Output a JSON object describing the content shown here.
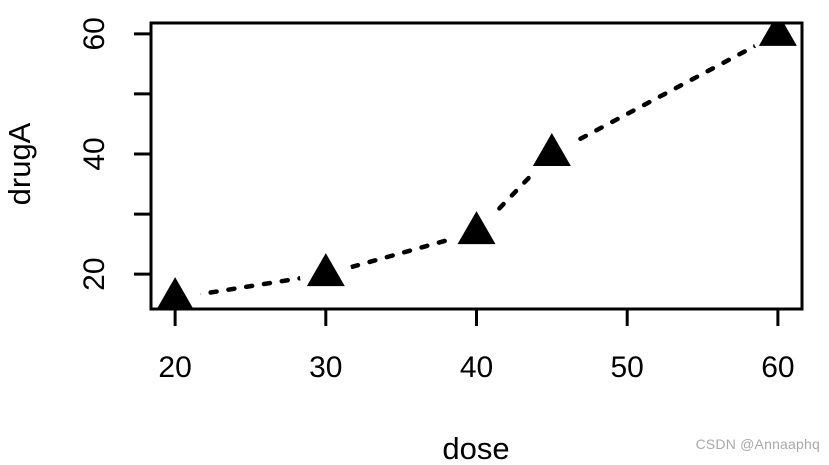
{
  "watermark": {
    "text": "CSDN @Annaaphq",
    "color": "#a9a9a9"
  },
  "chart_data": {
    "type": "line",
    "title": "",
    "xlabel": "dose",
    "ylabel": "drugA",
    "x": [
      20,
      30,
      40,
      45,
      60
    ],
    "y": [
      16,
      20,
      27,
      40,
      60
    ],
    "series": [
      {
        "name": "drugA",
        "x": [
          20,
          30,
          40,
          45,
          60
        ],
        "values": [
          16,
          20,
          27,
          40,
          60
        ]
      }
    ],
    "marker": "filled-triangle",
    "line_style": "dashed",
    "x_ticks": [
      20,
      30,
      40,
      50,
      60
    ],
    "x_tick_labels": [
      "20",
      "30",
      "40",
      "50",
      "60"
    ],
    "y_ticks": [
      20,
      30,
      40,
      50,
      60
    ],
    "y_tick_labels": [
      "20",
      "",
      "40",
      "",
      "60"
    ],
    "xlim": [
      18.4,
      61.6
    ],
    "ylim": [
      14.2,
      61.8
    ],
    "grid": false,
    "legend": false,
    "colors": {
      "line": "#000000",
      "marker": "#000000",
      "axis": "#000000",
      "background": "#ffffff"
    }
  }
}
